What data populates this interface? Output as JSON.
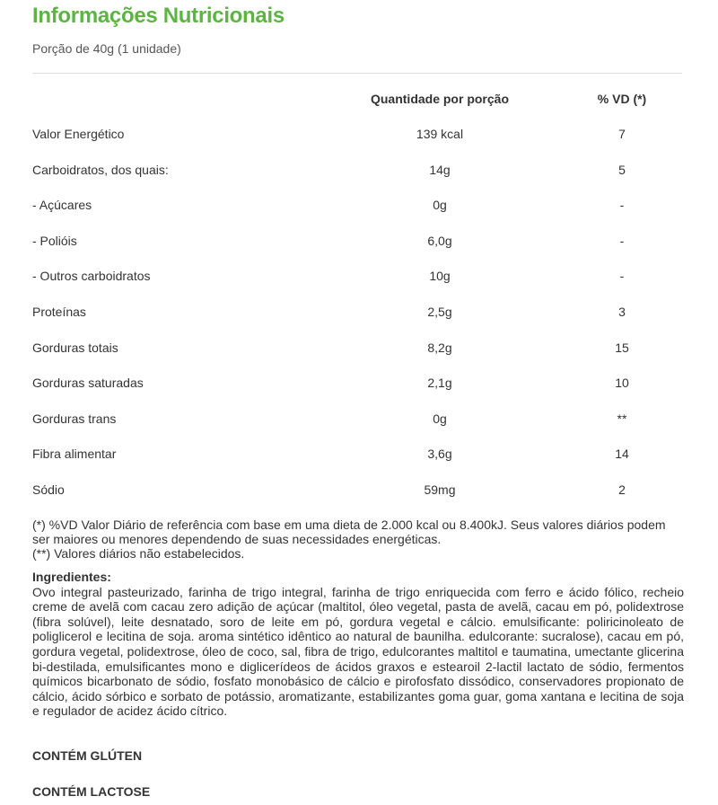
{
  "title": "Informações Nutricionais",
  "portion": "Porção de 40g (1 unidade)",
  "table": {
    "headers": {
      "quantity": "Quantidade por porção",
      "vd": "% VD (*)"
    },
    "rows": [
      {
        "label": "Valor Energético",
        "quantity": "139 kcal",
        "vd": "7"
      },
      {
        "label": "Carboidratos, dos quais:",
        "quantity": "14g",
        "vd": "5"
      },
      {
        "label": "- Açúcares",
        "quantity": "0g",
        "vd": "-"
      },
      {
        "label": "- Polióis",
        "quantity": "6,0g",
        "vd": "-"
      },
      {
        "label": "- Outros carboidratos",
        "quantity": "10g",
        "vd": "-"
      },
      {
        "label": "Proteínas",
        "quantity": "2,5g",
        "vd": "3"
      },
      {
        "label": "Gorduras totais",
        "quantity": "8,2g",
        "vd": "15"
      },
      {
        "label": "Gorduras saturadas",
        "quantity": "2,1g",
        "vd": "10"
      },
      {
        "label": "Gorduras trans",
        "quantity": "0g",
        "vd": "**"
      },
      {
        "label": "Fibra alimentar",
        "quantity": "3,6g",
        "vd": "14"
      },
      {
        "label": "Sódio",
        "quantity": "59mg",
        "vd": "2"
      }
    ]
  },
  "footnotes": {
    "vd": "(*) %VD Valor Diário de referência com base em uma dieta de 2.000 kcal ou 8.400kJ. Seus valores diários podem ser maiores ou menores dependendo de suas necessidades energéticas.",
    "not_established": "(**) Valores diários não estabelecidos."
  },
  "ingredients": {
    "heading": "Ingredientes:",
    "text": "Ovo integral pasteurizado, farinha de trigo integral, farinha de trigo enriquecida com ferro e ácido fólico, recheio creme de avelã com cacau zero adição de açúcar (maltitol, óleo vegetal, pasta de avelã, cacau em pó, polidextrose (fibra solúvel), leite desnatado, soro de leite em pó, gordura vegetal e cálcio. emulsificante: poliricinoleato de poliglicerol e lecitina de soja. aroma sintético idêntico ao natural de baunilha. edulcorante: sucralose), cacau em pó, gordura vegetal, polidextrose, óleo de coco, sal, fibra de trigo, edulcorantes maltitol e taumatina, umectante glicerina bi-destilada, emulsificantes mono e diglicerídeos de ácidos graxos e estearoil 2-lactil lactato de sódio, fermentos químicos bicarbonato de sódio, fosfato monobásico de cálcio e pirofosfato dissódico, conservadores propionato de cálcio, ácido sórbico e sorbato de potássio, aromatizante, estabilizantes goma guar, goma xantana e lecitina de soja e regulador de acidez ácido cítrico."
  },
  "allergens": [
    "CONTÉM GLÚTEN",
    "CONTÉM LACTOSE"
  ],
  "colors": {
    "title": "#5cb443",
    "text": "#333333"
  }
}
